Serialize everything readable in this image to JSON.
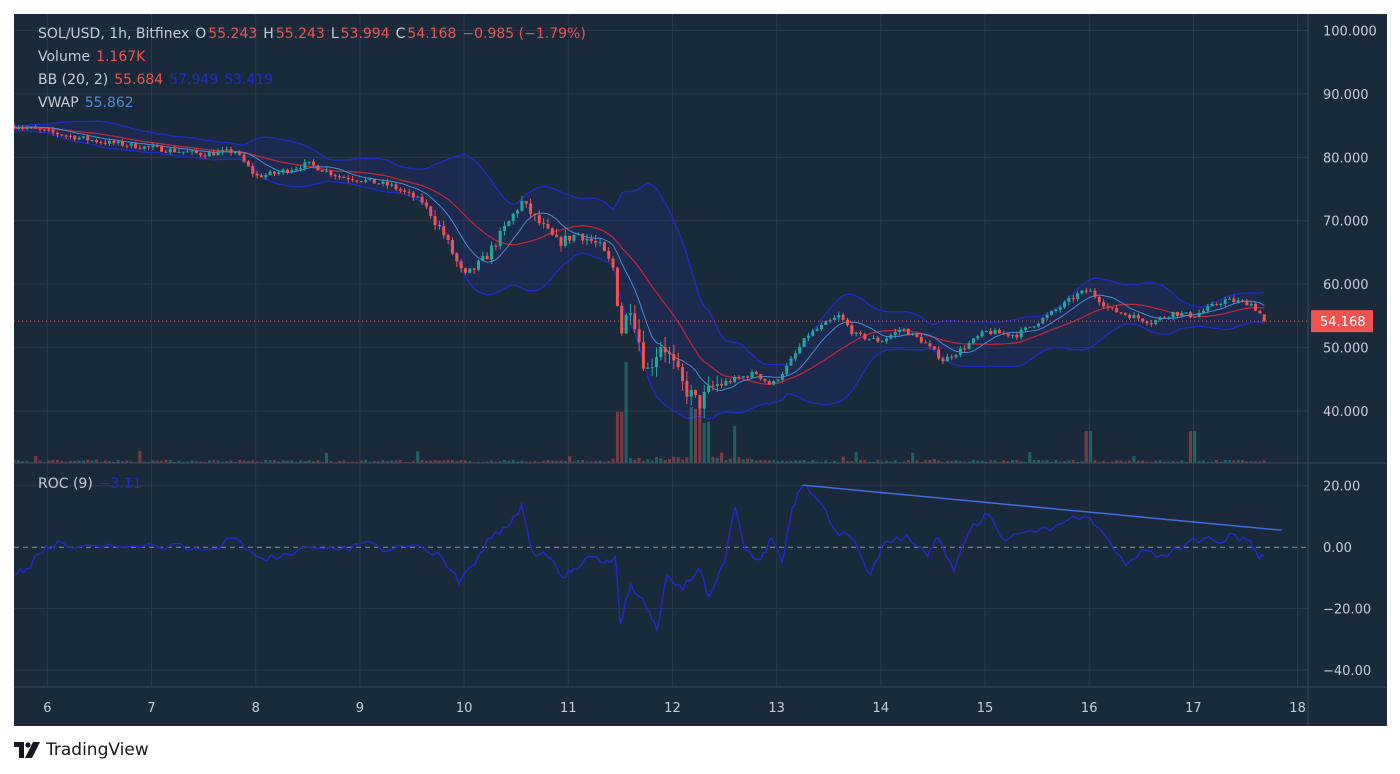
{
  "header": {
    "symbol": "SOL/USD, 1h, Bitfinex",
    "open_label": "O",
    "open": "55.243",
    "high_label": "H",
    "high": "55.243",
    "low_label": "L",
    "low": "53.994",
    "close_label": "C",
    "close": "54.168",
    "change": "−0.985 (−1.79%)"
  },
  "indicators": {
    "volume_label": "Volume",
    "volume_value": "1.167K",
    "bb_label": "BB (20, 2)",
    "bb_basis": "55.684",
    "bb_upper": "57.949",
    "bb_lower": "53.419",
    "vwap_label": "VWAP",
    "vwap_value": "55.862",
    "roc_label": "ROC (9)",
    "roc_value": "−3.11"
  },
  "price_badge": "54.168",
  "brand": {
    "name": "TradingView",
    "logo_icon": "tradingview-logo-icon"
  },
  "colors": {
    "background": "#1b2a3a",
    "grid": "#2a3a4c",
    "up": "#26a69a",
    "down": "#ef5350",
    "bb_band": "#1f2cc8",
    "bb_basis": "#c0283a",
    "vwap": "#4a8ad8",
    "roc": "#1f2cc8",
    "trendline": "#3d6fe0"
  },
  "chart_data": [
    {
      "type": "candlestick",
      "title": "SOL/USD, 1h, Bitfinex",
      "x_ticks": [
        "6",
        "7",
        "8",
        "9",
        "10",
        "11",
        "12",
        "13",
        "14",
        "15",
        "16",
        "17",
        "18"
      ],
      "x_domain": [
        5.68,
        18.1
      ],
      "y_ticks": [
        "100.000",
        "90.000",
        "80.000",
        "70.000",
        "60.000",
        "50.000",
        "40.000"
      ],
      "ylim": [
        31.8,
        102.6
      ],
      "last_price": 54.168,
      "grid": true,
      "close_anchors": [
        [
          5.68,
          85
        ],
        [
          6.0,
          84
        ],
        [
          6.5,
          82.5
        ],
        [
          7.0,
          81.5
        ],
        [
          7.5,
          80.5
        ],
        [
          7.8,
          81
        ],
        [
          8.0,
          77
        ],
        [
          8.2,
          77.5
        ],
        [
          8.5,
          79
        ],
        [
          8.8,
          77
        ],
        [
          9.0,
          76.5
        ],
        [
          9.3,
          75.5
        ],
        [
          9.6,
          73
        ],
        [
          9.8,
          68
        ],
        [
          10.0,
          61
        ],
        [
          10.2,
          64
        ],
        [
          10.4,
          69
        ],
        [
          10.55,
          73
        ],
        [
          10.7,
          70
        ],
        [
          10.9,
          66.5
        ],
        [
          11.1,
          68
        ],
        [
          11.3,
          66
        ],
        [
          11.45,
          62
        ],
        [
          11.5,
          52
        ],
        [
          11.6,
          57
        ],
        [
          11.75,
          46
        ],
        [
          11.9,
          51
        ],
        [
          12.1,
          44
        ],
        [
          12.25,
          41
        ],
        [
          12.4,
          44
        ],
        [
          12.6,
          45
        ],
        [
          12.8,
          46
        ],
        [
          12.95,
          44
        ],
        [
          13.1,
          47
        ],
        [
          13.3,
          52
        ],
        [
          13.5,
          54
        ],
        [
          13.6,
          55
        ],
        [
          13.75,
          52
        ],
        [
          14.0,
          51
        ],
        [
          14.2,
          53
        ],
        [
          14.4,
          51
        ],
        [
          14.6,
          48
        ],
        [
          14.8,
          50
        ],
        [
          15.0,
          52.5
        ],
        [
          15.3,
          52
        ],
        [
          15.6,
          55
        ],
        [
          15.9,
          58.5
        ],
        [
          16.0,
          59
        ],
        [
          16.2,
          56
        ],
        [
          16.4,
          55
        ],
        [
          16.6,
          54
        ],
        [
          16.8,
          55.5
        ],
        [
          17.0,
          55
        ],
        [
          17.3,
          57.5
        ],
        [
          17.55,
          57
        ],
        [
          17.7,
          54.2
        ]
      ],
      "bollinger": {
        "period": 20,
        "std": 2,
        "basis": 55.684,
        "upper": 57.949,
        "lower": 53.419
      },
      "vwap": 55.862,
      "volume": {
        "last": "1.167K",
        "spikes": [
          [
            11.5,
            6.4
          ],
          [
            11.56,
            12.6
          ],
          [
            12.2,
            7.0
          ],
          [
            12.25,
            6.8
          ],
          [
            12.32,
            5.0
          ],
          [
            12.6,
            4.6
          ],
          [
            16.0,
            4.0
          ],
          [
            17.0,
            4.0
          ]
        ]
      }
    },
    {
      "type": "line",
      "title": "ROC (9)",
      "x_ticks": [
        "6",
        "7",
        "8",
        "9",
        "10",
        "11",
        "12",
        "13",
        "14",
        "15",
        "16",
        "17",
        "18"
      ],
      "y_ticks": [
        "20.00",
        "0.00",
        "−20.00",
        "−40.00"
      ],
      "ylim": [
        -45.5,
        27.4
      ],
      "zero_line": 0,
      "series": [
        {
          "values": [
            [
              5.68,
              -9
            ],
            [
              5.8,
              -7
            ],
            [
              5.95,
              -2
            ],
            [
              6.1,
              2
            ],
            [
              6.3,
              0
            ],
            [
              6.6,
              1
            ],
            [
              6.9,
              0
            ],
            [
              7.2,
              1
            ],
            [
              7.5,
              -1
            ],
            [
              7.8,
              3
            ],
            [
              8.0,
              -3
            ],
            [
              8.2,
              -4
            ],
            [
              8.5,
              0
            ],
            [
              8.8,
              -1
            ],
            [
              9.0,
              1
            ],
            [
              9.3,
              -1
            ],
            [
              9.6,
              0
            ],
            [
              9.8,
              -4
            ],
            [
              9.95,
              -12
            ],
            [
              10.15,
              -2
            ],
            [
              10.3,
              5
            ],
            [
              10.45,
              8
            ],
            [
              10.55,
              14
            ],
            [
              10.65,
              -1
            ],
            [
              10.8,
              -3
            ],
            [
              10.95,
              -10
            ],
            [
              11.05,
              -7
            ],
            [
              11.2,
              -3
            ],
            [
              11.35,
              -5
            ],
            [
              11.45,
              -3
            ],
            [
              11.5,
              -25
            ],
            [
              11.6,
              -12
            ],
            [
              11.75,
              -20
            ],
            [
              11.85,
              -27
            ],
            [
              11.95,
              -9
            ],
            [
              12.1,
              -14
            ],
            [
              12.25,
              -7
            ],
            [
              12.35,
              -16
            ],
            [
              12.5,
              -5
            ],
            [
              12.6,
              13
            ],
            [
              12.7,
              -1
            ],
            [
              12.85,
              -4
            ],
            [
              12.95,
              3
            ],
            [
              13.05,
              -5
            ],
            [
              13.15,
              13
            ],
            [
              13.25,
              20
            ],
            [
              13.4,
              15
            ],
            [
              13.55,
              6
            ],
            [
              13.75,
              2
            ],
            [
              13.9,
              -9
            ],
            [
              14.05,
              2
            ],
            [
              14.25,
              4
            ],
            [
              14.45,
              -3
            ],
            [
              14.55,
              3
            ],
            [
              14.7,
              -8
            ],
            [
              14.85,
              5
            ],
            [
              15.0,
              11
            ],
            [
              15.2,
              2
            ],
            [
              15.5,
              5
            ],
            [
              15.75,
              8
            ],
            [
              15.95,
              10
            ],
            [
              16.15,
              4
            ],
            [
              16.35,
              -6
            ],
            [
              16.55,
              -1
            ],
            [
              16.75,
              -3
            ],
            [
              17.0,
              3
            ],
            [
              17.2,
              2
            ],
            [
              17.4,
              4
            ],
            [
              17.55,
              2
            ],
            [
              17.62,
              -3
            ],
            [
              17.68,
              -3.11
            ]
          ]
        }
      ],
      "trendline": [
        [
          13.25,
          20.2
        ],
        [
          17.85,
          5.5
        ]
      ],
      "grid": true
    }
  ]
}
